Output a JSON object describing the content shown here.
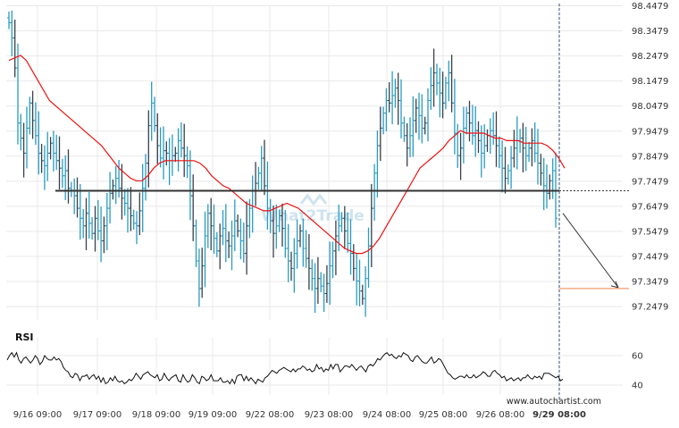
{
  "chart_data": [
    {
      "type": "ohlc",
      "panel": "price",
      "x_tick_labels": [
        "9/16 09:00",
        "9/17 09:00",
        "9/18 09:00",
        "9/19 09:00",
        "9/22 08:00",
        "9/23 08:00",
        "9/24 08:00",
        "9/25 08:00",
        "9/26 08:00",
        "9/29 08:00"
      ],
      "y_tick_labels": [
        "98.4479",
        "98.3479",
        "98.2479",
        "98.1479",
        "98.0479",
        "97.9479",
        "97.8479",
        "97.7479",
        "97.6479",
        "97.5479",
        "97.4479",
        "97.3479",
        "97.2479"
      ],
      "ylim": [
        97.2,
        98.46
      ],
      "grid": true,
      "close": [
        98.38,
        98.32,
        98.2,
        97.98,
        97.92,
        97.86,
        97.96,
        98.06,
        97.99,
        97.93,
        97.86,
        97.83,
        97.81,
        97.86,
        97.9,
        97.86,
        97.83,
        97.8,
        97.77,
        97.79,
        97.72,
        97.71,
        97.69,
        97.64,
        97.6,
        97.57,
        97.62,
        97.58,
        97.54,
        97.6,
        97.55,
        97.51,
        97.57,
        97.64,
        97.7,
        97.73,
        97.76,
        97.72,
        97.68,
        97.66,
        97.64,
        97.61,
        97.58,
        97.57,
        97.63,
        97.72,
        97.82,
        97.97,
        98.06,
        97.97,
        97.89,
        97.84,
        97.87,
        97.86,
        97.83,
        97.85,
        97.86,
        97.91,
        97.88,
        97.85,
        97.81,
        97.69,
        97.57,
        97.43,
        97.32,
        97.41,
        97.53,
        97.62,
        97.57,
        97.52,
        97.47,
        97.53,
        97.56,
        97.51,
        97.49,
        97.53,
        97.59,
        97.55,
        97.51,
        97.46,
        97.57,
        97.64,
        97.71,
        97.74,
        97.78,
        97.84,
        97.73,
        97.64,
        97.59,
        97.54,
        97.57,
        97.61,
        97.56,
        97.48,
        97.43,
        97.4,
        97.46,
        97.51,
        97.55,
        97.48,
        97.44,
        97.4,
        97.36,
        97.32,
        97.36,
        97.33,
        97.3,
        97.34,
        97.41,
        97.47,
        97.53,
        97.57,
        97.6,
        97.55,
        97.5,
        97.46,
        97.4,
        97.35,
        97.31,
        97.28,
        97.36,
        97.49,
        97.64,
        97.78,
        97.89,
        97.96,
        98.02,
        98.07,
        98.06,
        98.09,
        98.12,
        98.07,
        97.98,
        97.93,
        97.88,
        97.93,
        97.99,
        98.04,
        98.01,
        97.96,
        97.98,
        98.07,
        98.13,
        98.18,
        98.14,
        98.1,
        98.06,
        98.14,
        98.18,
        98.06,
        97.94,
        97.85,
        97.88,
        97.96,
        98.02,
        97.98,
        97.93,
        97.95,
        97.91,
        97.86,
        97.89,
        97.93,
        97.95,
        97.93,
        97.89,
        97.85,
        97.8,
        97.76,
        97.79,
        97.84,
        97.88,
        97.91,
        97.92,
        97.88,
        97.85,
        97.88,
        97.91,
        97.86,
        97.82,
        97.78,
        97.73,
        97.7,
        97.75,
        97.79,
        97.6
      ],
      "moving_average": [
        98.23,
        98.24,
        98.25,
        98.23,
        98.19,
        98.15,
        98.11,
        98.07,
        98.05,
        98.03,
        98.01,
        97.99,
        97.97,
        97.95,
        97.93,
        97.91,
        97.89,
        97.86,
        97.83,
        97.8,
        97.78,
        97.76,
        97.75,
        97.75,
        97.77,
        97.8,
        97.82,
        97.83,
        97.83,
        97.83,
        97.83,
        97.83,
        97.83,
        97.82,
        97.8,
        97.77,
        97.75,
        97.73,
        97.72,
        97.7,
        97.68,
        97.66,
        97.65,
        97.64,
        97.63,
        97.63,
        97.64,
        97.65,
        97.66,
        97.65,
        97.64,
        97.62,
        97.6,
        97.58,
        97.56,
        97.54,
        97.52,
        97.5,
        97.48,
        97.47,
        97.46,
        97.46,
        97.47,
        97.49,
        97.52,
        97.56,
        97.6,
        97.64,
        97.68,
        97.72,
        97.76,
        97.8,
        97.82,
        97.84,
        97.86,
        97.88,
        97.91,
        97.93,
        97.95,
        97.94,
        97.94,
        97.94,
        97.94,
        97.93,
        97.92,
        97.92,
        97.91,
        97.91,
        97.91,
        97.9,
        97.9,
        97.9,
        97.9,
        97.89,
        97.87,
        97.84,
        97.8
      ],
      "ma_color": "#ee1111",
      "bar_color": "#2a9bc1",
      "bar_color_alt": "#3a3f4a",
      "support_level": 97.71,
      "target_level": 97.32,
      "line_color": "#333333",
      "target_color": "#f39a70"
    },
    {
      "type": "line",
      "panel": "rsi",
      "title": "RSI",
      "y_tick_labels": [
        "60",
        "40"
      ],
      "ylim": [
        35,
        66
      ],
      "values": [
        57,
        60,
        62,
        59,
        62,
        57,
        55,
        58,
        59,
        57,
        55,
        57,
        60,
        58,
        54,
        56,
        60,
        58,
        57,
        57,
        59,
        57,
        58,
        56,
        52,
        50,
        49,
        46,
        45,
        48,
        47,
        43,
        46,
        46,
        47,
        44,
        46,
        47,
        44,
        46,
        42,
        45,
        41,
        42,
        45,
        43,
        46,
        43,
        42,
        43,
        41,
        42,
        44,
        43,
        45,
        48,
        46,
        44,
        47,
        48,
        49,
        47,
        46,
        45,
        47,
        43,
        44,
        48,
        45,
        43,
        45,
        46,
        47,
        43,
        42,
        47,
        44,
        42,
        43,
        47,
        45,
        42,
        41,
        46,
        45,
        43,
        44,
        47,
        43,
        43,
        43,
        45,
        42,
        42,
        43,
        41,
        44,
        41,
        46,
        47,
        47,
        43,
        46,
        43,
        45,
        43,
        41,
        44,
        43,
        42,
        45,
        46,
        48,
        50,
        49,
        48,
        50,
        51,
        52,
        51,
        50,
        49,
        51,
        49,
        51,
        51,
        53,
        52,
        50,
        51,
        49,
        50,
        54,
        51,
        52,
        49,
        51,
        50,
        54,
        51,
        54,
        54,
        49,
        51,
        53,
        53,
        52,
        54,
        52,
        50,
        52,
        53,
        51,
        49,
        53,
        54,
        53,
        55,
        58,
        57,
        59,
        61,
        62,
        60,
        61,
        59,
        58,
        60,
        59,
        62,
        61,
        60,
        57,
        56,
        59,
        60,
        58,
        56,
        55,
        55,
        57,
        59,
        55,
        56,
        58,
        57,
        54,
        51,
        48,
        47,
        45,
        44,
        45,
        46,
        46,
        45,
        47,
        45,
        45,
        47,
        45,
        46,
        47,
        49,
        48,
        46,
        46,
        49,
        50,
        48,
        47,
        45,
        46,
        43,
        44,
        45,
        43,
        44,
        45,
        43,
        45,
        45,
        47,
        45,
        44,
        46,
        45,
        46,
        44,
        48,
        48,
        48,
        47,
        46,
        45,
        46,
        43,
        44
      ]
    }
  ],
  "watermark_text": "What2Trade",
  "footer_text": "www.autochartist.com",
  "colors": {
    "grid": "#e9e9e9",
    "background": "#ffffff",
    "vline": "#2c4d7e"
  }
}
